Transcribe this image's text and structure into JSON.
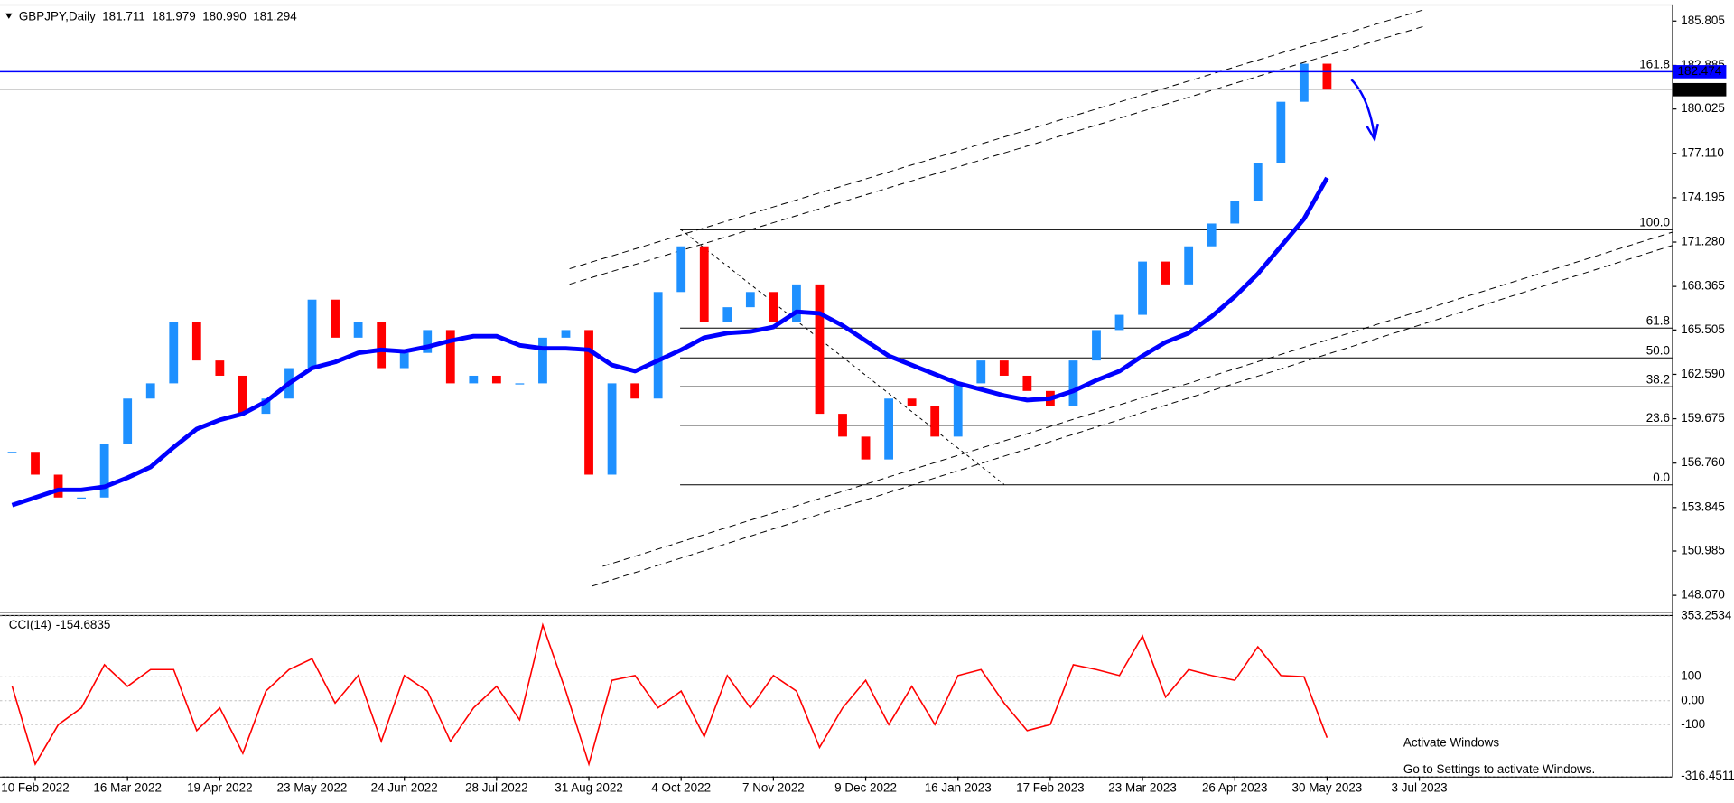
{
  "chart_data": {
    "type": "candlestick",
    "symbol": "GBPJPY,Daily",
    "quote": [
      181.711,
      181.979,
      180.99,
      181.294
    ],
    "quote_labels": [
      "181.711",
      "181.979",
      "180.990",
      "181.294"
    ],
    "date_labels": [
      "10 Feb 2022",
      "16 Mar 2022",
      "19 Apr 2022",
      "23 May 2022",
      "24 Jun 2022",
      "28 Jul 2022",
      "31 Aug 2022",
      "4 Oct 2022",
      "7 Nov 2022",
      "9 Dec 2022",
      "16 Jan 2023",
      "17 Feb 2023",
      "23 Mar 2023",
      "26 Apr 2023",
      "30 May 2023",
      "3 Jul 2023"
    ],
    "price": {
      "bull_color": "#1e90ff",
      "bear_color": "#ff0000",
      "values": [
        157.5,
        156.0,
        154.5,
        154.5,
        158,
        161,
        162,
        166,
        163.5,
        162.5,
        160,
        161,
        163,
        167.5,
        165,
        166,
        163,
        164,
        165.5,
        162,
        162.5,
        162,
        162,
        165,
        165.5,
        156,
        162,
        161,
        168,
        171,
        166,
        167,
        168,
        166,
        168.5,
        160,
        158.5,
        157,
        161,
        160.5,
        158.5,
        162,
        163.5,
        162.5,
        161.5,
        160.5,
        163.5,
        165.5,
        166.5,
        170,
        168.5,
        171,
        172.5,
        174,
        176.5,
        180.5,
        183,
        181.3
      ]
    },
    "ma": {
      "color": "#0000ff",
      "values": [
        154.0,
        154.5,
        155,
        155,
        155.2,
        155.8,
        156.5,
        157.8,
        159,
        159.6,
        160,
        160.8,
        162,
        163,
        163.4,
        164,
        164.2,
        164.1,
        164.4,
        164.8,
        165.1,
        165.1,
        164.5,
        164.3,
        164.3,
        164.2,
        163.2,
        162.8,
        163.5,
        164.2,
        165,
        165.3,
        165.4,
        165.7,
        166.7,
        166.6,
        165.8,
        164.8,
        163.8,
        163.2,
        162.6,
        162.0,
        161.6,
        161.2,
        160.9,
        161.0,
        161.5,
        162.2,
        162.8,
        163.8,
        164.7,
        165.3,
        166.4,
        167.7,
        169.2,
        171.0,
        172.8,
        175.5
      ]
    },
    "ylim": [
      147.0,
      186.75
    ],
    "yticks": [
      185.805,
      182.885,
      180.025,
      {
        "value": 177.11,
        "label": "177.110"
      },
      174.195,
      {
        "value": 171.28,
        "label": "171.280"
      },
      168.365,
      165.505,
      {
        "value": 162.59,
        "label": "162.590"
      },
      159.675,
      {
        "value": 156.76,
        "label": "156.760"
      },
      153.845,
      150.985,
      {
        "value": 148.07,
        "label": "148.070"
      }
    ],
    "level_line": {
      "value": 182.474,
      "label": "182.474",
      "color": "#0000ff"
    },
    "current_price": 181.294,
    "fib_levels": [
      {
        "label": "161.8",
        "price": 182.474
      },
      {
        "label": "100.0",
        "price": 172.09
      },
      {
        "label": "61.8",
        "price": 165.63
      },
      {
        "label": "50.0",
        "price": 163.67
      },
      {
        "label": "38.2",
        "price": 161.78
      },
      {
        "label": "23.6",
        "price": 159.24
      },
      {
        "label": "0.0",
        "price": 155.33
      }
    ],
    "cci": {
      "name": "CCI(14)",
      "last": -154.6835,
      "color": "#ff0000",
      "values": [
        60,
        -265,
        -100,
        -30,
        150,
        60,
        130,
        130,
        -125,
        -30,
        -220,
        40,
        130,
        175,
        -10,
        105,
        -170,
        105,
        40,
        -170,
        -30,
        60,
        -80,
        316,
        40,
        -265,
        85,
        105,
        -30,
        40,
        -150,
        105,
        -30,
        105,
        40,
        -195,
        -30,
        85,
        -100,
        60,
        -100,
        105,
        130,
        -10,
        -125,
        -100,
        150,
        130,
        105,
        270,
        15,
        130,
        105,
        85,
        225,
        105,
        100,
        -154.6835
      ],
      "ylim": [
        -316.4511,
        353.2534
      ],
      "yticks": [
        353.2534,
        100,
        {
          "value": 0,
          "label": "0.00"
        },
        -100,
        -316.4511
      ]
    },
    "watermark": [
      "Activate Windows",
      "Go to Settings to activate Windows."
    ]
  }
}
